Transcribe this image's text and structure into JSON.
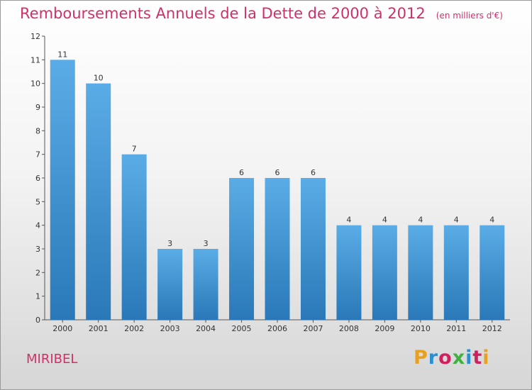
{
  "header": {
    "title": "Remboursements Annuels de la Dette de 2000 à 2012",
    "subtitle": "(en milliers d'€)"
  },
  "footer": {
    "town": "MIRIBEL",
    "brand": "Proxiti",
    "brand_colors": [
      "#e8a020",
      "#2a8fd0",
      "#d02060",
      "#40b040",
      "#2a8fd0",
      "#d02060",
      "#e8a020"
    ]
  },
  "chart_data": {
    "type": "bar",
    "title": "Remboursements Annuels de la Dette de 2000 à 2012",
    "subtitle": "(en milliers d'€)",
    "categories": [
      "2000",
      "2001",
      "2002",
      "2003",
      "2004",
      "2005",
      "2006",
      "2007",
      "2008",
      "2009",
      "2010",
      "2011",
      "2012"
    ],
    "values": [
      11,
      10,
      7,
      3,
      3,
      6,
      6,
      6,
      4,
      4,
      4,
      4,
      4
    ],
    "data_labels": [
      "11",
      "10",
      "7",
      "3",
      "3",
      "6",
      "6",
      "6",
      "4",
      "4",
      "4",
      "4",
      "4"
    ],
    "yticks": [
      "0",
      "1",
      "2",
      "3",
      "4",
      "5",
      "6",
      "7",
      "8",
      "9",
      "10",
      "11",
      "12"
    ],
    "ylim": [
      0,
      12
    ],
    "xlabel": "",
    "ylabel": "",
    "grid": false,
    "bar_color_light": "#5aace6",
    "bar_color_dark": "#2a78b8",
    "text_color": "#333333"
  }
}
